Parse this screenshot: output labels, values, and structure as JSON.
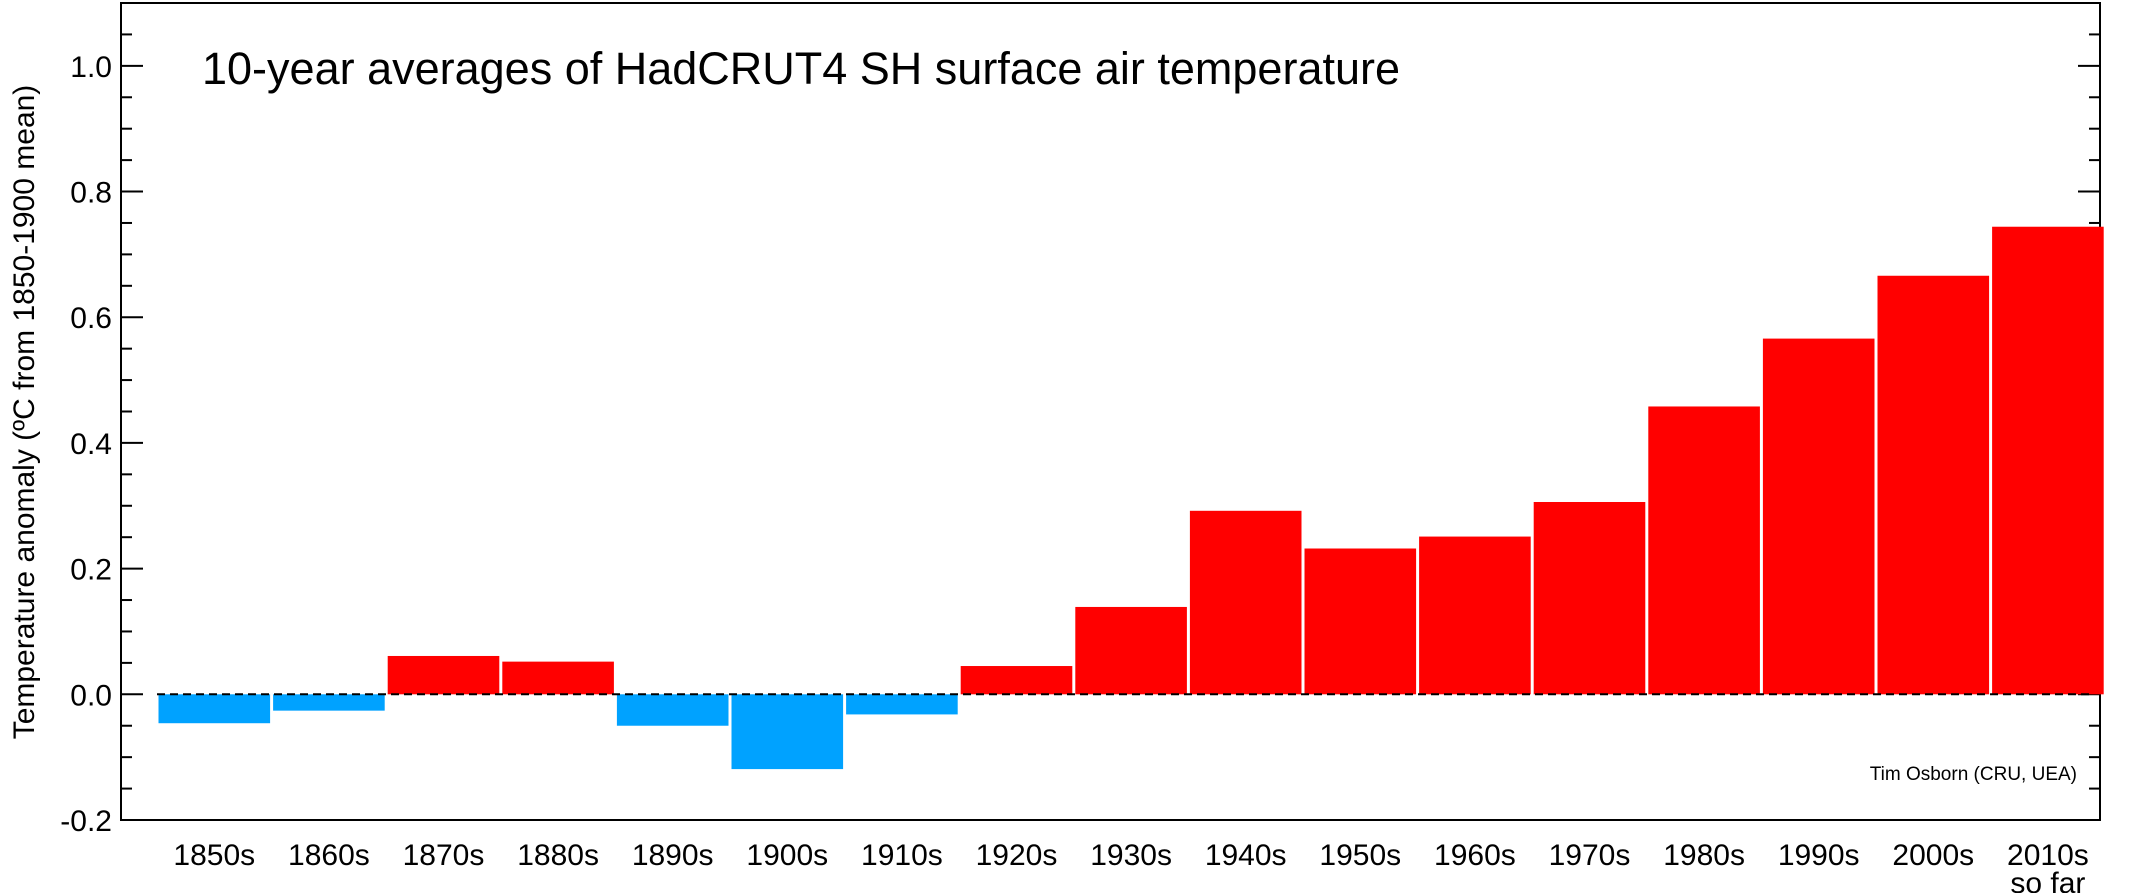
{
  "chart_data": {
    "type": "bar",
    "title": "10-year averages of HadCRUT4 SH surface air temperature",
    "ylabel": "Temperature anomaly (ºC from 1850-1900 mean)",
    "xlabel": "",
    "credit": "Tim Osborn (CRU, UEA)",
    "ylim": [
      -0.2,
      1.1
    ],
    "yticks": [
      -0.2,
      0.0,
      0.2,
      0.4,
      0.6,
      0.8,
      1.0
    ],
    "ytick_labels": [
      "-0.2",
      "0.0",
      "0.2",
      "0.4",
      "0.6",
      "0.8",
      "1.0"
    ],
    "y_minor_step": 0.05,
    "grid": false,
    "zero_line": "dashed",
    "categories": [
      "1850s",
      "1860s",
      "1870s",
      "1880s",
      "1890s",
      "1900s",
      "1910s",
      "1920s",
      "1930s",
      "1940s",
      "1950s",
      "1960s",
      "1970s",
      "1980s",
      "1990s",
      "2000s",
      "2010s"
    ],
    "category_sublabels": [
      "",
      "",
      "",
      "",
      "",
      "",
      "",
      "",
      "",
      "",
      "",
      "",
      "",
      "",
      "",
      "",
      "so far"
    ],
    "values": [
      -0.046,
      -0.026,
      0.061,
      0.052,
      -0.05,
      -0.119,
      -0.032,
      0.045,
      0.139,
      0.292,
      0.232,
      0.251,
      0.306,
      0.458,
      0.566,
      0.666,
      0.744
    ],
    "colors": {
      "positive": "#ff0000",
      "negative": "#00a2ff",
      "axis": "#000000"
    }
  }
}
